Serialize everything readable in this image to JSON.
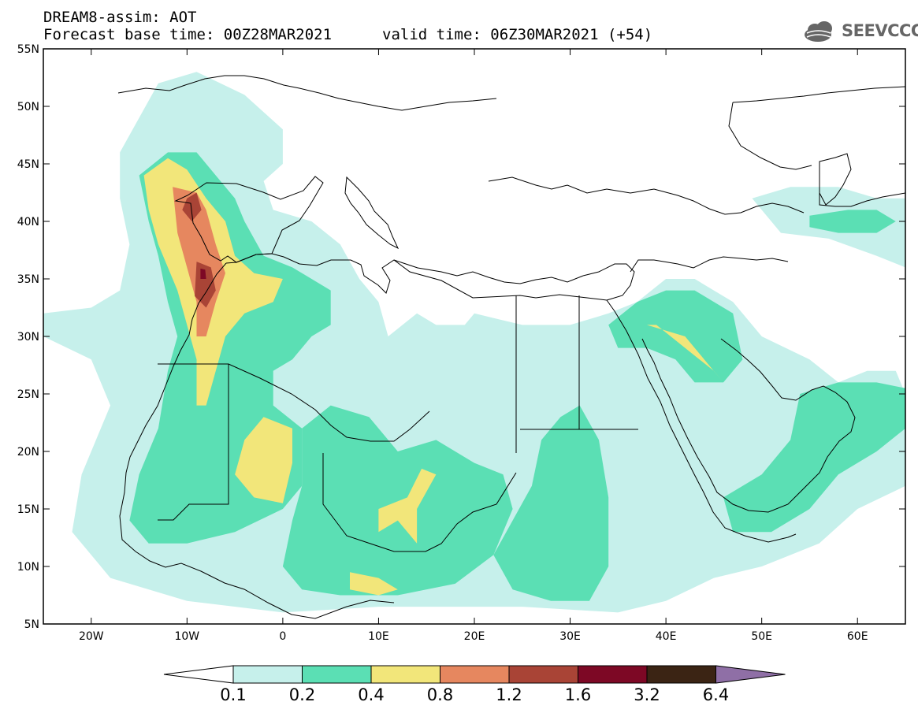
{
  "header": {
    "title": "DREAM8-assim: AOT",
    "base_time": "Forecast base time: 00Z28MAR2021",
    "valid_time": "valid time: 06Z30MAR2021 (+54)",
    "logo_text": "SEEVCCC"
  },
  "axes": {
    "lon_range": [
      -25,
      65
    ],
    "lat_range": [
      5,
      55
    ],
    "x_ticks": [
      {
        "value": -20,
        "label": "20W"
      },
      {
        "value": -10,
        "label": "10W"
      },
      {
        "value": 0,
        "label": "0"
      },
      {
        "value": 10,
        "label": "10E"
      },
      {
        "value": 20,
        "label": "20E"
      },
      {
        "value": 30,
        "label": "30E"
      },
      {
        "value": 40,
        "label": "40E"
      },
      {
        "value": 50,
        "label": "50E"
      },
      {
        "value": 60,
        "label": "60E"
      }
    ],
    "y_ticks": [
      {
        "value": 55,
        "label": "55N"
      },
      {
        "value": 50,
        "label": "50N"
      },
      {
        "value": 45,
        "label": "45N"
      },
      {
        "value": 40,
        "label": "40N"
      },
      {
        "value": 35,
        "label": "35N"
      },
      {
        "value": 30,
        "label": "30N"
      },
      {
        "value": 25,
        "label": "25N"
      },
      {
        "value": 20,
        "label": "20N"
      },
      {
        "value": 15,
        "label": "15N"
      },
      {
        "value": 10,
        "label": "10N"
      },
      {
        "value": 5,
        "label": "5N"
      }
    ]
  },
  "colorbar": {
    "low_color": "#ffffff",
    "high_color": "#8f6fa6",
    "bins": [
      {
        "color": "#c6f0eb",
        "from": 0.1,
        "to": 0.2
      },
      {
        "color": "#5bdfb4",
        "from": 0.2,
        "to": 0.4
      },
      {
        "color": "#f2e67a",
        "from": 0.4,
        "to": 0.8
      },
      {
        "color": "#e6875f",
        "from": 0.8,
        "to": 1.2
      },
      {
        "color": "#a94436",
        "from": 1.2,
        "to": 1.6
      },
      {
        "color": "#7d0825",
        "from": 1.6,
        "to": 3.2
      },
      {
        "color": "#3b2414",
        "from": 3.2,
        "to": 6.4
      }
    ],
    "labels": [
      "0.1",
      "0.2",
      "0.4",
      "0.8",
      "1.2",
      "1.6",
      "3.2",
      "6.4"
    ]
  },
  "chart_data": {
    "type": "heatmap",
    "variable": "AOT",
    "regions": [
      {
        "name": "west-atlantic-iberia-plume",
        "level": 0.1,
        "poly": [
          [
            -13,
            52
          ],
          [
            -9,
            53
          ],
          [
            -4,
            51
          ],
          [
            0,
            48
          ],
          [
            0,
            45
          ],
          [
            -2,
            43.5
          ],
          [
            -1,
            41
          ],
          [
            3,
            40
          ],
          [
            6,
            38
          ],
          [
            8,
            35
          ],
          [
            10,
            33
          ],
          [
            11,
            30
          ],
          [
            14,
            32
          ],
          [
            16,
            31
          ],
          [
            19,
            31
          ],
          [
            20,
            32
          ],
          [
            25,
            31
          ],
          [
            30,
            31
          ],
          [
            34,
            32
          ],
          [
            37,
            33
          ],
          [
            40,
            35
          ],
          [
            43,
            35
          ],
          [
            47,
            33
          ],
          [
            50,
            30
          ],
          [
            55,
            28
          ],
          [
            58,
            26
          ],
          [
            61,
            27
          ],
          [
            64,
            27
          ],
          [
            65,
            25
          ],
          [
            65,
            17
          ],
          [
            60,
            15
          ],
          [
            56,
            12
          ],
          [
            50,
            10
          ],
          [
            45,
            9
          ],
          [
            40,
            7
          ],
          [
            35,
            6
          ],
          [
            25,
            6.5
          ],
          [
            10,
            6.5
          ],
          [
            0,
            6
          ],
          [
            -10,
            7
          ],
          [
            -18,
            9
          ],
          [
            -22,
            13
          ],
          [
            -21,
            18
          ],
          [
            -18,
            24
          ],
          [
            -20,
            28
          ],
          [
            -25,
            30
          ],
          [
            -25,
            32
          ],
          [
            -20,
            32.5
          ],
          [
            -17,
            34
          ],
          [
            -16,
            38
          ],
          [
            -17,
            42
          ],
          [
            -17,
            46
          ]
        ]
      },
      {
        "name": "caspian-region",
        "level": 0.1,
        "poly": [
          [
            49,
            42
          ],
          [
            53,
            43
          ],
          [
            58,
            43
          ],
          [
            62,
            42
          ],
          [
            65,
            42
          ],
          [
            65,
            36
          ],
          [
            62,
            37
          ],
          [
            57,
            38.5
          ],
          [
            52,
            39
          ]
        ]
      },
      {
        "name": "iberia-green",
        "level": 0.2,
        "poly": [
          [
            -15,
            44
          ],
          [
            -12,
            46
          ],
          [
            -9,
            46
          ],
          [
            -7,
            44
          ],
          [
            -5,
            42
          ],
          [
            -4,
            40
          ],
          [
            -2,
            37
          ],
          [
            1,
            36
          ],
          [
            3,
            35
          ],
          [
            5,
            34
          ],
          [
            5,
            31
          ],
          [
            3,
            30
          ],
          [
            1,
            28
          ],
          [
            -1,
            27
          ],
          [
            -1,
            24
          ],
          [
            2,
            22
          ],
          [
            2,
            17
          ],
          [
            0,
            15
          ],
          [
            -5,
            13
          ],
          [
            -10,
            12
          ],
          [
            -14,
            12
          ],
          [
            -16,
            14
          ],
          [
            -15,
            18
          ],
          [
            -13,
            22
          ],
          [
            -12,
            27
          ],
          [
            -11,
            30
          ],
          [
            -12,
            33
          ],
          [
            -13,
            37
          ],
          [
            -14,
            40
          ]
        ]
      },
      {
        "name": "central-sahel-green",
        "level": 0.2,
        "poly": [
          [
            2,
            22
          ],
          [
            5,
            24
          ],
          [
            9,
            23
          ],
          [
            12,
            20
          ],
          [
            16,
            21
          ],
          [
            20,
            19
          ],
          [
            23,
            18
          ],
          [
            24,
            15
          ],
          [
            22,
            11
          ],
          [
            18,
            8.5
          ],
          [
            12,
            7.5
          ],
          [
            6,
            7.5
          ],
          [
            2,
            8
          ],
          [
            0,
            10
          ],
          [
            1,
            14
          ],
          [
            2,
            17
          ]
        ]
      },
      {
        "name": "sudan-green",
        "level": 0.2,
        "poly": [
          [
            29,
            23
          ],
          [
            31,
            24
          ],
          [
            33,
            21
          ],
          [
            34,
            16
          ],
          [
            34,
            10
          ],
          [
            32,
            7
          ],
          [
            28,
            7
          ],
          [
            24,
            8
          ],
          [
            22,
            11
          ],
          [
            24,
            14
          ],
          [
            26,
            17
          ],
          [
            27,
            21
          ]
        ]
      },
      {
        "name": "iraq-green",
        "level": 0.2,
        "poly": [
          [
            34,
            31
          ],
          [
            37,
            33
          ],
          [
            40,
            34
          ],
          [
            43,
            34
          ],
          [
            47,
            32
          ],
          [
            48,
            28
          ],
          [
            46,
            26
          ],
          [
            43,
            26
          ],
          [
            41,
            28
          ],
          [
            38,
            29
          ],
          [
            35,
            29
          ]
        ]
      },
      {
        "name": "arabian-sea-green",
        "level": 0.2,
        "poly": [
          [
            54,
            25
          ],
          [
            58,
            26
          ],
          [
            62,
            26
          ],
          [
            65,
            25.5
          ],
          [
            65,
            22
          ],
          [
            62,
            20
          ],
          [
            58,
            18
          ],
          [
            55,
            15
          ],
          [
            51,
            13
          ],
          [
            47,
            13
          ],
          [
            46,
            16
          ],
          [
            50,
            18
          ],
          [
            53,
            21
          ]
        ]
      },
      {
        "name": "caspian-green",
        "level": 0.2,
        "poly": [
          [
            55,
            40.5
          ],
          [
            59,
            41
          ],
          [
            62,
            41
          ],
          [
            64,
            40
          ],
          [
            62,
            39
          ],
          [
            58,
            39
          ],
          [
            55,
            39.5
          ]
        ]
      },
      {
        "name": "iberia-yellow",
        "level": 0.4,
        "poly": [
          [
            -14.5,
            44
          ],
          [
            -12,
            45.5
          ],
          [
            -10,
            44.5
          ],
          [
            -8,
            42
          ],
          [
            -6,
            40
          ],
          [
            -5,
            37
          ],
          [
            -3,
            35.5
          ],
          [
            0,
            35
          ],
          [
            -1,
            33
          ],
          [
            -4,
            32
          ],
          [
            -6,
            30
          ],
          [
            -7,
            27
          ],
          [
            -8,
            24
          ],
          [
            -9,
            24
          ],
          [
            -9,
            28
          ],
          [
            -10,
            31
          ],
          [
            -11,
            34
          ],
          [
            -13,
            38
          ],
          [
            -14,
            41
          ]
        ]
      },
      {
        "name": "algeria-mali-yellow",
        "level": 0.4,
        "poly": [
          [
            -2,
            23
          ],
          [
            1,
            22
          ],
          [
            1,
            19
          ],
          [
            0,
            15.5
          ],
          [
            -3,
            16
          ],
          [
            -5,
            18
          ],
          [
            -4,
            21
          ]
        ]
      },
      {
        "name": "chad-yellow",
        "level": 0.4,
        "poly": [
          [
            14.5,
            18.5
          ],
          [
            16,
            18
          ],
          [
            14,
            15
          ],
          [
            14,
            12
          ],
          [
            12,
            14
          ],
          [
            10,
            13
          ],
          [
            10,
            15
          ],
          [
            13,
            16
          ]
        ]
      },
      {
        "name": "nigeria-yellow",
        "level": 0.4,
        "poly": [
          [
            7,
            9.5
          ],
          [
            10,
            9
          ],
          [
            12,
            8
          ],
          [
            10,
            7.5
          ],
          [
            7,
            8
          ]
        ]
      },
      {
        "name": "iraq-yellow",
        "level": 0.4,
        "poly": [
          [
            36,
            31
          ],
          [
            39,
            31
          ],
          [
            42,
            29
          ],
          [
            45,
            27
          ],
          [
            46,
            26
          ],
          [
            44,
            28
          ],
          [
            42,
            30
          ],
          [
            38,
            31
          ]
        ]
      },
      {
        "name": "iberia-orange",
        "level": 0.8,
        "poly": [
          [
            -11.5,
            43
          ],
          [
            -9,
            42.5
          ],
          [
            -8,
            41
          ],
          [
            -7,
            38
          ],
          [
            -6,
            35.5
          ],
          [
            -7,
            33
          ],
          [
            -8,
            30
          ],
          [
            -9,
            30
          ],
          [
            -9,
            33
          ],
          [
            -10,
            36
          ],
          [
            -11,
            39
          ]
        ]
      },
      {
        "name": "iberia-dark-north",
        "level": 1.2,
        "poly": [
          [
            -10,
            42
          ],
          [
            -9,
            42.5
          ],
          [
            -8.5,
            41
          ],
          [
            -9.5,
            40
          ],
          [
            -10.5,
            41
          ]
        ]
      },
      {
        "name": "iberia-dark-south",
        "level": 1.2,
        "poly": [
          [
            -9,
            36.5
          ],
          [
            -7.5,
            36
          ],
          [
            -7,
            34
          ],
          [
            -8,
            32.5
          ],
          [
            -9.2,
            33.5
          ]
        ]
      },
      {
        "name": "iberia-peak",
        "level": 1.6,
        "poly": [
          [
            -8.6,
            35.9
          ],
          [
            -8.1,
            35.8
          ],
          [
            -8.0,
            35.0
          ],
          [
            -8.6,
            35.0
          ]
        ]
      }
    ]
  }
}
